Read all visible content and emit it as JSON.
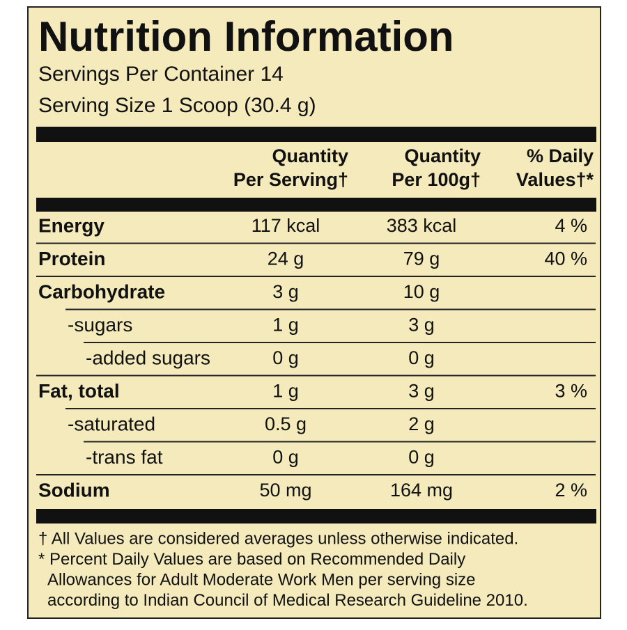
{
  "header": {
    "title": "Nutrition Information",
    "servings": "Servings Per Container 14",
    "serving_size": "Serving Size 1 Scoop (30.4 g)"
  },
  "table": {
    "columns": [
      [
        "Quantity",
        "Per Serving†"
      ],
      [
        "Quantity",
        "Per 100g†"
      ],
      [
        "% Daily",
        "Values†*"
      ]
    ],
    "rows": [
      {
        "name": "Energy",
        "level": 0,
        "cells": [
          "117 kcal",
          "383 kcal",
          "4 %"
        ]
      },
      {
        "name": "Protein",
        "level": 0,
        "cells": [
          "24 g",
          "79 g",
          "40 %"
        ]
      },
      {
        "name": "Carbohydrate",
        "level": 0,
        "cells": [
          "3 g",
          "10 g",
          null
        ]
      },
      {
        "name": "-sugars",
        "level": 1,
        "cells": [
          "1 g",
          "3 g",
          null
        ]
      },
      {
        "name": "-added sugars",
        "level": 2,
        "cells": [
          "0 g",
          "0 g",
          null
        ]
      },
      {
        "name": "Fat, total",
        "level": 0,
        "cells": [
          "1 g",
          "3 g",
          "3 %"
        ]
      },
      {
        "name": "-saturated",
        "level": 1,
        "cells": [
          "0.5 g",
          "2 g",
          null
        ]
      },
      {
        "name": "-trans fat",
        "level": 2,
        "cells": [
          "0 g",
          "0 g",
          null
        ]
      },
      {
        "name": "Sodium",
        "level": 0,
        "cells": [
          "50 mg",
          "164 mg",
          "2 %"
        ]
      }
    ]
  },
  "footnotes": [
    "† All Values are considered averages unless otherwise indicated.",
    "* Percent Daily Values are based on Recommended Daily",
    "Allowances for Adult Moderate Work Men per serving size",
    "according to Indian Council of Medical Research Guideline 2010."
  ]
}
